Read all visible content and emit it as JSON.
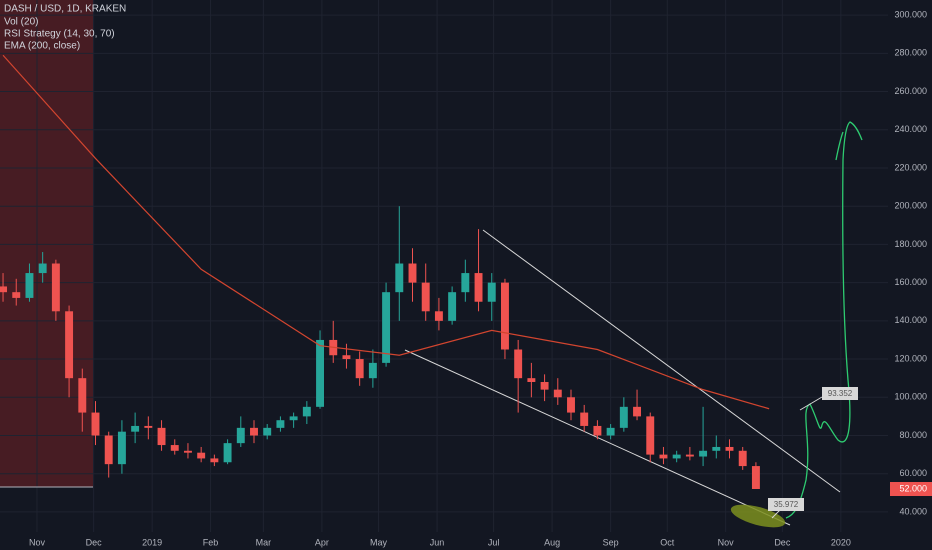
{
  "chart_data": {
    "type": "candlestick",
    "legend": [
      "DASH / USD, 1D, KRAKEN",
      "Vol (20)",
      "RSI Strategy (14, 30, 70)",
      "EMA (200, close)"
    ],
    "x": [
      0,
      1,
      2,
      3,
      4,
      5,
      6,
      7,
      8,
      9,
      10,
      11,
      12,
      13,
      14,
      15,
      16,
      17,
      18,
      19,
      20,
      21,
      22,
      23,
      24,
      25,
      26,
      27,
      28,
      29,
      30,
      31,
      32,
      33,
      34,
      35,
      36,
      37,
      38,
      39,
      40,
      41,
      42,
      43,
      44,
      45,
      46,
      47,
      48,
      49,
      50,
      51,
      52,
      53,
      54,
      55,
      56,
      57
    ],
    "open": [
      158,
      155,
      152,
      165,
      170,
      145,
      110,
      92,
      80,
      65,
      82,
      85,
      84,
      75,
      72,
      71,
      68,
      66,
      76,
      84,
      80,
      84,
      88,
      90,
      95,
      130,
      122,
      120,
      110,
      118,
      155,
      170,
      160,
      145,
      140,
      155,
      165,
      150,
      160,
      125,
      110,
      108,
      104,
      100,
      92,
      85,
      80,
      84,
      95,
      90,
      70,
      68,
      70,
      69,
      72,
      74,
      72,
      64
    ],
    "high": [
      165,
      162,
      170,
      176,
      172,
      148,
      115,
      98,
      82,
      88,
      92,
      90,
      88,
      78,
      76,
      74,
      70,
      78,
      90,
      88,
      86,
      90,
      92,
      98,
      135,
      140,
      128,
      124,
      125,
      160,
      200,
      178,
      170,
      152,
      158,
      172,
      188,
      165,
      162,
      130,
      118,
      112,
      110,
      104,
      96,
      88,
      86,
      100,
      104,
      92,
      74,
      72,
      74,
      95,
      80,
      78,
      74,
      66
    ],
    "low": [
      150,
      148,
      150,
      160,
      140,
      100,
      82,
      75,
      58,
      60,
      76,
      78,
      72,
      70,
      68,
      66,
      64,
      65,
      74,
      76,
      78,
      82,
      84,
      86,
      94,
      118,
      115,
      106,
      105,
      116,
      140,
      150,
      140,
      135,
      138,
      150,
      145,
      140,
      120,
      92,
      100,
      98,
      96,
      88,
      82,
      78,
      78,
      82,
      88,
      66,
      65,
      66,
      67,
      64,
      68,
      68,
      62,
      52
    ],
    "close": [
      155,
      152,
      165,
      170,
      145,
      110,
      92,
      80,
      65,
      82,
      85,
      84,
      75,
      72,
      71,
      68,
      66,
      76,
      84,
      80,
      84,
      88,
      90,
      95,
      130,
      122,
      120,
      110,
      118,
      155,
      170,
      160,
      145,
      140,
      155,
      165,
      150,
      160,
      125,
      110,
      108,
      104,
      100,
      92,
      85,
      80,
      84,
      95,
      90,
      70,
      68,
      70,
      69,
      72,
      74,
      72,
      64,
      52
    ],
    "up_color": "#26a69a",
    "down_color": "#ef5350",
    "ema": {
      "x": [
        0,
        7,
        15,
        24,
        30,
        37,
        45,
        53,
        58
      ],
      "values": [
        279,
        225,
        167,
        127,
        122,
        135,
        125,
        104,
        94
      ],
      "color": "#d2452f"
    },
    "xlim": [
      -0.23,
      67
    ],
    "xticks": [
      {
        "value": 2.57,
        "label": "Nov"
      },
      {
        "value": 6.86,
        "label": "Dec"
      },
      {
        "value": 11.29,
        "label": "2019"
      },
      {
        "value": 15.71,
        "label": "Feb"
      },
      {
        "value": 19.71,
        "label": "Mar"
      },
      {
        "value": 24.14,
        "label": "Apr"
      },
      {
        "value": 28.43,
        "label": "May"
      },
      {
        "value": 32.86,
        "label": "Jun"
      },
      {
        "value": 37.14,
        "label": "Jul"
      },
      {
        "value": 41.57,
        "label": "Aug"
      },
      {
        "value": 46,
        "label": "Sep"
      },
      {
        "value": 50.29,
        "label": "Oct"
      },
      {
        "value": 54.71,
        "label": "Nov"
      },
      {
        "value": 59,
        "label": "Dec"
      },
      {
        "value": 63.43,
        "label": "2020"
      }
    ],
    "ylim": [
      29.5,
      307.9
    ],
    "yticks": [
      {
        "value": 40,
        "label": "40.000"
      },
      {
        "value": 60,
        "label": "60.000"
      },
      {
        "value": 80,
        "label": "80.000"
      },
      {
        "value": 100,
        "label": "100.000"
      },
      {
        "value": 120,
        "label": "120.000"
      },
      {
        "value": 140,
        "label": "140.000"
      },
      {
        "value": 160,
        "label": "160.000"
      },
      {
        "value": 180,
        "label": "180.000"
      },
      {
        "value": 200,
        "label": "200.000"
      },
      {
        "value": 220,
        "label": "220.000"
      },
      {
        "value": 240,
        "label": "240.000"
      },
      {
        "value": 260,
        "label": "260.000"
      },
      {
        "value": 280,
        "label": "280.000"
      },
      {
        "value": 300,
        "label": "300.000"
      }
    ],
    "grid": true,
    "last_price": {
      "value": 52,
      "label": "52.000"
    },
    "callouts": [
      {
        "value": 93.352,
        "label": "93.352"
      },
      {
        "value": 35.972,
        "label": "35.972"
      }
    ]
  }
}
